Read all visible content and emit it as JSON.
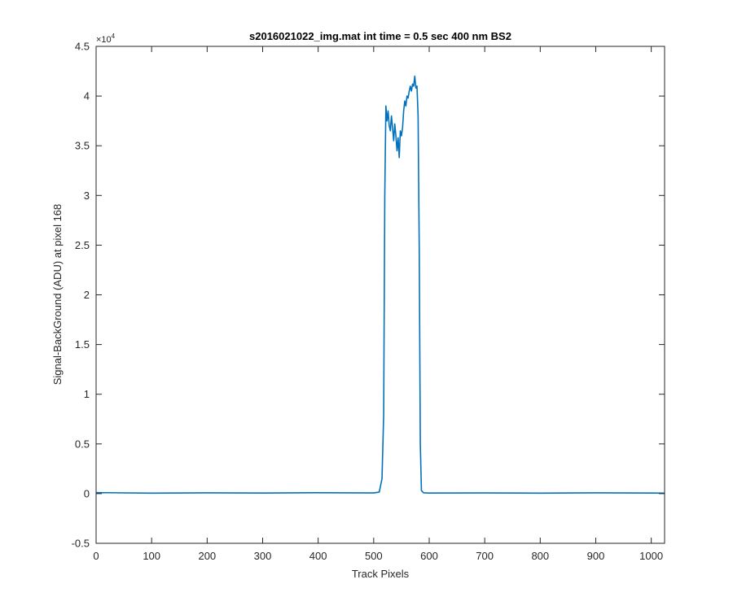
{
  "chart_data": {
    "type": "line",
    "title": "s2016021022_img.mat int time = 0.5 sec  400 nm BS2",
    "xlabel": "Track Pixels",
    "ylabel": "Signal-BackGround (ADU) at pixel 168",
    "xlim": [
      0,
      1024
    ],
    "ylim": [
      -5000,
      45000
    ],
    "y_multiplier": {
      "base": "×10",
      "exponent": "4"
    },
    "x_ticks": [
      0,
      100,
      200,
      300,
      400,
      500,
      600,
      700,
      800,
      900,
      1000
    ],
    "x_tick_labels": [
      "0",
      "100",
      "200",
      "300",
      "400",
      "500",
      "600",
      "700",
      "800",
      "900",
      "1000"
    ],
    "y_ticks": [
      -5000,
      0,
      5000,
      10000,
      15000,
      20000,
      25000,
      30000,
      35000,
      40000,
      45000
    ],
    "y_tick_labels": [
      "-0.5",
      "0",
      "0.5",
      "1",
      "1.5",
      "2",
      "2.5",
      "3",
      "3.5",
      "4",
      "4.5"
    ],
    "grid": false,
    "series": [
      {
        "color": "#0072BD",
        "x": [
          0,
          100,
          200,
          300,
          400,
          500,
          510,
          515,
          518,
          520,
          522,
          524,
          526,
          528,
          530,
          532,
          534,
          536,
          538,
          540,
          542,
          544,
          546,
          548,
          550,
          552,
          554,
          556,
          558,
          560,
          562,
          564,
          566,
          568,
          570,
          572,
          574,
          576,
          578,
          580,
          582,
          584,
          586,
          590,
          600,
          700,
          800,
          900,
          1000,
          1024
        ],
        "y": [
          100,
          50,
          80,
          60,
          90,
          70,
          150,
          1500,
          8000,
          30000,
          39000,
          37500,
          38500,
          37000,
          36500,
          38000,
          36800,
          35500,
          37200,
          36000,
          34500,
          35800,
          33800,
          36500,
          36000,
          36800,
          38500,
          39500,
          39000,
          40000,
          39800,
          40500,
          41000,
          40500,
          41200,
          41000,
          42000,
          40800,
          41000,
          38000,
          25000,
          5000,
          300,
          80,
          60,
          70,
          50,
          80,
          60,
          50
        ]
      }
    ]
  }
}
